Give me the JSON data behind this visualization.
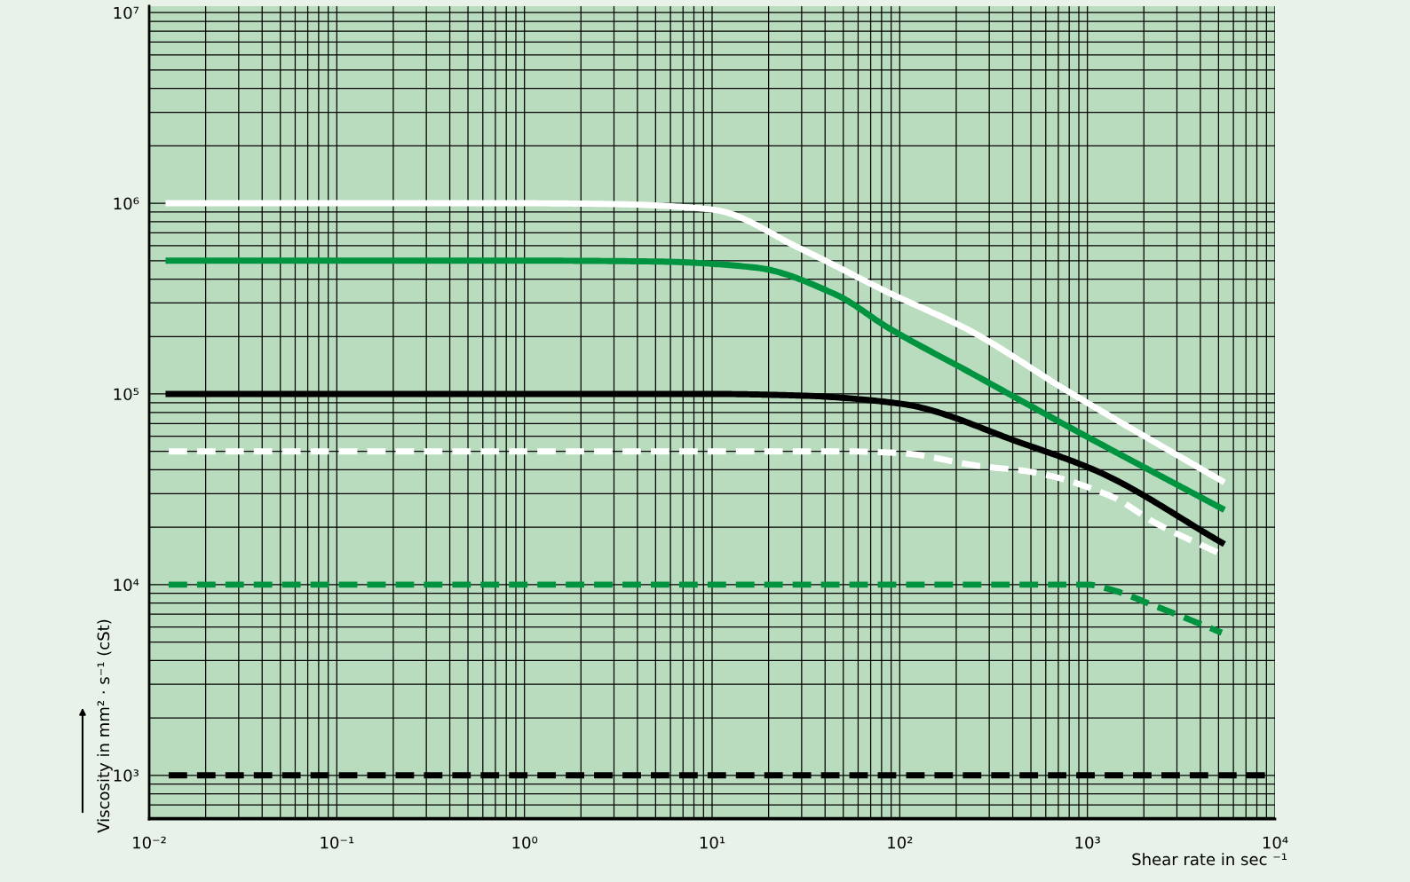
{
  "chart_data": {
    "type": "line",
    "xlabel": "Shear rate in sec ⁻¹",
    "ylabel": "Viscosity in mm² · s⁻¹ (cSt)",
    "log": "xy",
    "grid": true,
    "legend": false,
    "marker": "none",
    "xlim": [
      0.01,
      10000
    ],
    "ylim": [
      590,
      10800000
    ],
    "xticks": [
      {
        "value": 0.01,
        "label": "10⁻²"
      },
      {
        "value": 0.1,
        "label": "10⁻¹"
      },
      {
        "value": 1,
        "label": "10⁰"
      },
      {
        "value": 10,
        "label": "10¹"
      },
      {
        "value": 100,
        "label": "10²"
      },
      {
        "value": 1000,
        "label": "10³"
      },
      {
        "value": 10000,
        "label": "10⁴"
      }
    ],
    "yticks": [
      {
        "value": 1000,
        "label": "10³"
      },
      {
        "value": 10000,
        "label": "10⁴"
      },
      {
        "value": 100000,
        "label": "10⁵"
      },
      {
        "value": 1000000,
        "label": "10⁶"
      },
      {
        "value": 10000000,
        "label": "10⁷"
      }
    ],
    "series": [
      {
        "color": "#ffffff",
        "line_style": "solid",
        "x": [
          0.0127,
          1,
          3,
          10,
          29.4,
          87.7,
          234,
          778,
          5200
        ],
        "values": [
          1000000,
          1000000,
          990000,
          927000,
          580000,
          339000,
          216000,
          104000,
          35000
        ]
      },
      {
        "color": "#009440",
        "line_style": "solid",
        "x": [
          0.0127,
          1,
          5,
          17,
          45.6,
          87.7,
          239,
          778,
          5200
        ],
        "values": [
          500000,
          500000,
          495000,
          460000,
          332000,
          221000,
          129000,
          68000,
          25100
        ]
      },
      {
        "color": "#000000",
        "line_style": "solid",
        "x": [
          0.0127,
          1,
          10,
          30,
          100,
          451,
          1150,
          5200
        ],
        "values": [
          100000,
          100000,
          100000,
          98000,
          89000,
          55000,
          39000,
          16600
        ]
      },
      {
        "color": "#ffffff",
        "line_style": "dashed",
        "x": [
          0.0127,
          1,
          50,
          100,
          261,
          502,
          1343,
          2317,
          5200
        ],
        "values": [
          50000,
          50000,
          50000,
          49000,
          42000,
          39000,
          29000,
          21000,
          14400
        ]
      },
      {
        "color": "#009440",
        "line_style": "dashed",
        "x": [
          0.0127,
          1,
          100,
          1000,
          1343,
          2317,
          5200
        ],
        "values": [
          10000,
          10000,
          10000,
          10000,
          9400,
          7700,
          5600
        ]
      },
      {
        "color": "#000000",
        "line_style": "dashed",
        "x": [
          0.0127,
          1,
          100,
          10000
        ],
        "values": [
          1000,
          1000,
          1000,
          1000
        ]
      }
    ]
  }
}
